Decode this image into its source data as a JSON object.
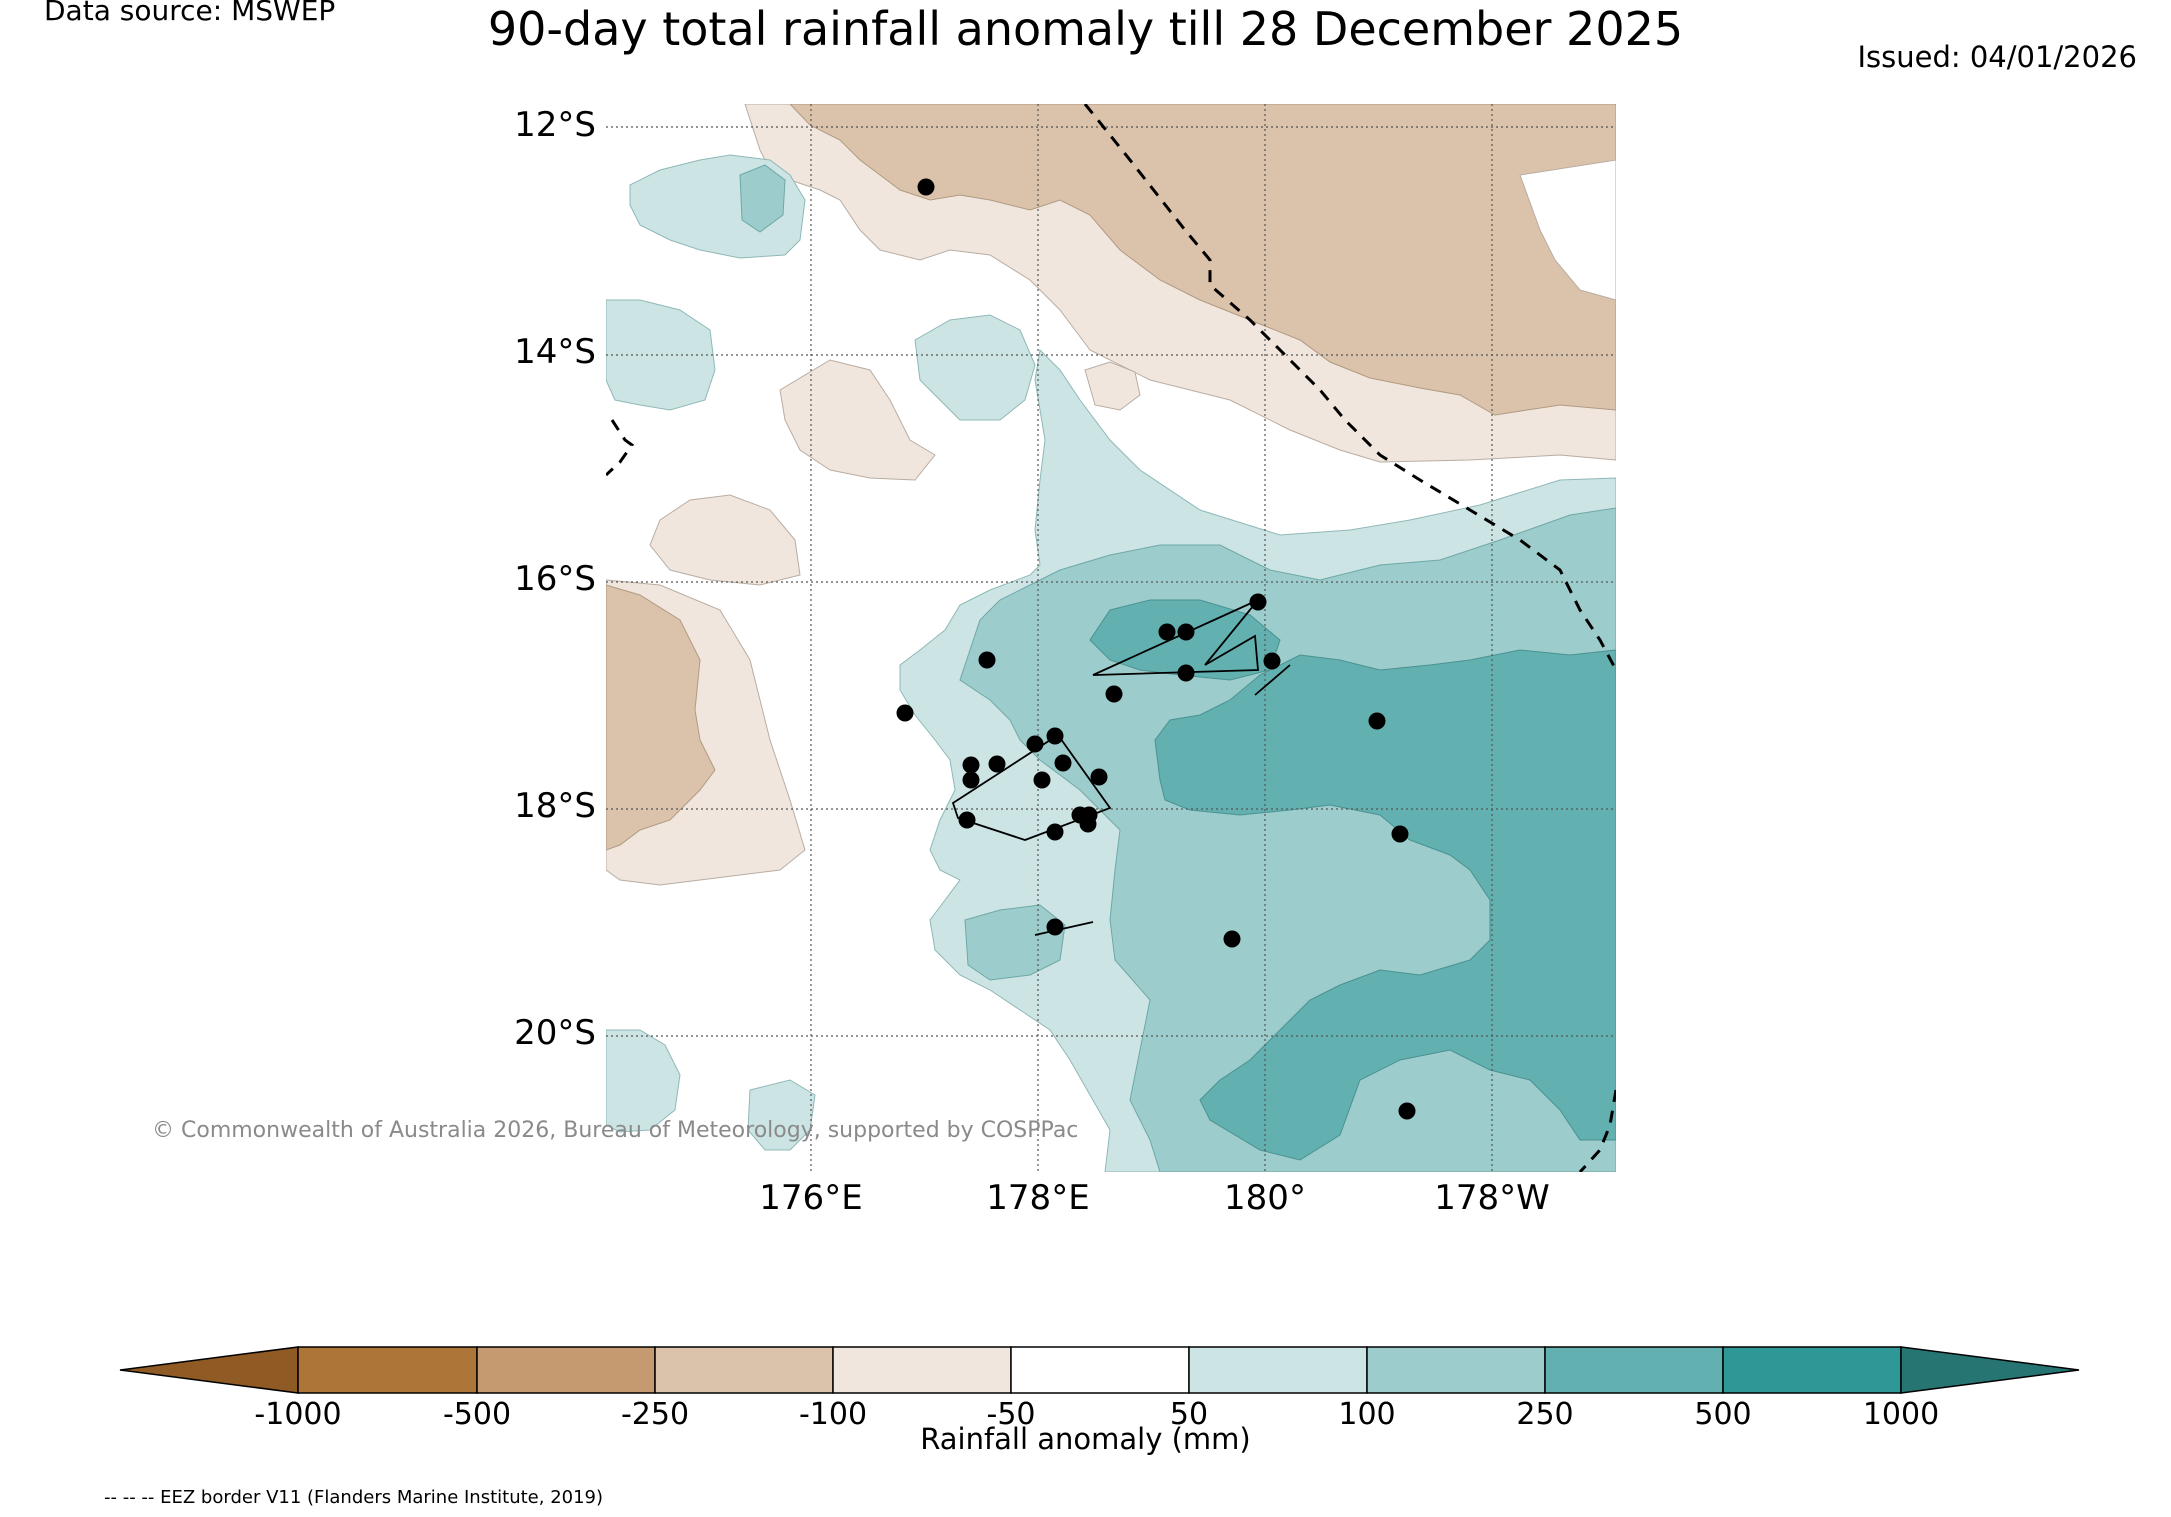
{
  "header": {
    "data_source": "Data source: MSWEP",
    "title": "90-day total rainfall anomaly till 28 December 2025",
    "issued": "Issued: 04/01/2026"
  },
  "map": {
    "lat_labels": [
      "12°S",
      "14°S",
      "16°S",
      "18°S",
      "20°S"
    ],
    "lon_labels": [
      "176°E",
      "178°E",
      "180°",
      "178°W"
    ],
    "copyright": "© Commonwealth of Australia 2026, Bureau of Meteorology, supported by COSPPac",
    "colors": {
      "dry_250": "#dac3aa",
      "dry_100": "#f0e6dd",
      "neutral": "#ffffff",
      "wet_50": "#cde4e4",
      "wet_100": "#9ccccb",
      "wet_250": "#63b0b0",
      "dot": "#000000",
      "eez": "#000000"
    }
  },
  "colorbar": {
    "label": "Rainfall anomaly (mm)",
    "ticks": [
      "-1000",
      "-500",
      "-250",
      "-100",
      "-50",
      "50",
      "100",
      "250",
      "500",
      "1000"
    ],
    "colors": [
      "#8f5a23",
      "#ad7538",
      "#c59a70",
      "#dac3aa",
      "#f0e6dd",
      "#ffffff",
      "#cde4e4",
      "#9ccccb",
      "#63b0b0",
      "#2f9896",
      "#267573"
    ]
  },
  "footer": {
    "eez_note": "-- -- -- EEZ border V11 (Flanders Marine Institute, 2019)"
  }
}
